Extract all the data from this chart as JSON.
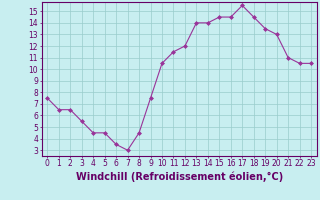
{
  "x": [
    0,
    1,
    2,
    3,
    4,
    5,
    6,
    7,
    8,
    9,
    10,
    11,
    12,
    13,
    14,
    15,
    16,
    17,
    18,
    19,
    20,
    21,
    22,
    23
  ],
  "y": [
    7.5,
    6.5,
    6.5,
    5.5,
    4.5,
    4.5,
    3.5,
    3.0,
    4.5,
    7.5,
    10.5,
    11.5,
    12.0,
    14.0,
    14.0,
    14.5,
    14.5,
    15.5,
    14.5,
    13.5,
    13.0,
    11.0,
    10.5,
    10.5
  ],
  "line_color": "#993399",
  "marker": "D",
  "marker_size": 2,
  "bg_color": "#c8eef0",
  "grid_color": "#99cccc",
  "xlabel": "Windchill (Refroidissement éolien,°C)",
  "xlim": [
    -0.5,
    23.5
  ],
  "ylim": [
    2.5,
    15.8
  ],
  "yticks": [
    3,
    4,
    5,
    6,
    7,
    8,
    9,
    10,
    11,
    12,
    13,
    14,
    15
  ],
  "xticks": [
    0,
    1,
    2,
    3,
    4,
    5,
    6,
    7,
    8,
    9,
    10,
    11,
    12,
    13,
    14,
    15,
    16,
    17,
    18,
    19,
    20,
    21,
    22,
    23
  ],
  "tick_label_fontsize": 5.5,
  "xlabel_fontsize": 7,
  "axis_color": "#660066",
  "label_color": "#660066",
  "spine_color": "#660066"
}
